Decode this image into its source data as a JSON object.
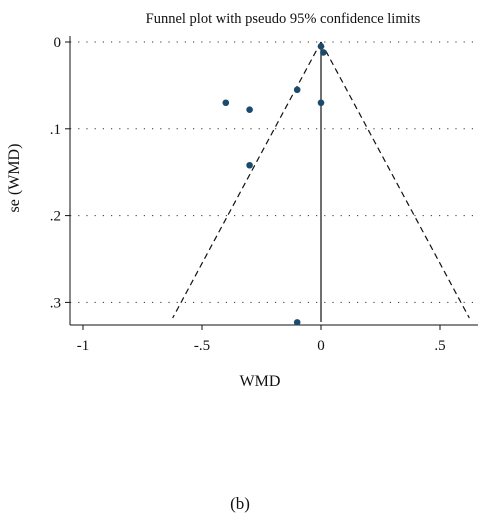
{
  "chart_data": {
    "type": "scatter",
    "title": "Funnel plot with pseudo 95% confidence limits",
    "xlabel": "WMD",
    "ylabel": "se (WMD)",
    "xlim": [
      -1.05,
      0.65
    ],
    "ylim": [
      0,
      0.33
    ],
    "y_inverted": true,
    "grid": "horizontal dotted",
    "x_ticks": [
      -1,
      -0.5,
      0,
      0.5
    ],
    "x_tick_labels": [
      "-1",
      "-.5",
      "0",
      ".5"
    ],
    "y_ticks": [
      0,
      0.1,
      0.2,
      0.3
    ],
    "y_tick_labels": [
      "0",
      ".1",
      ".2",
      ".3"
    ],
    "pooled_effect": 0,
    "confidence_limits": "pseudo 95%",
    "points": [
      {
        "x": 0,
        "y": 0.005
      },
      {
        "x": 0.01,
        "y": 0.012
      },
      {
        "x": -0.1,
        "y": 0.055
      },
      {
        "x": -0.4,
        "y": 0.07
      },
      {
        "x": 0,
        "y": 0.07
      },
      {
        "x": -0.3,
        "y": 0.078
      },
      {
        "x": -0.3,
        "y": 0.142
      },
      {
        "x": -0.1,
        "y": 0.323
      }
    ],
    "point_color": "#1b4a6b"
  },
  "caption": "(b)"
}
